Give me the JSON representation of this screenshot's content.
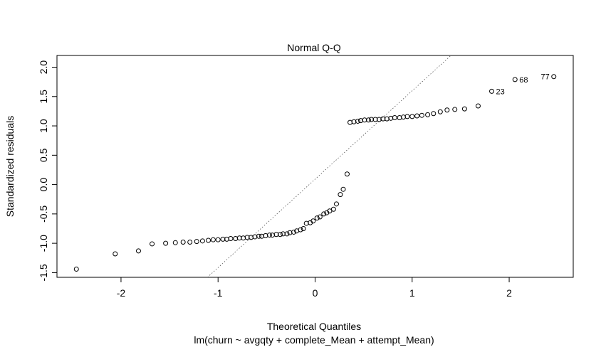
{
  "chart_data": {
    "type": "scatter",
    "title": "Normal Q-Q",
    "xlabel": "Theoretical Quantiles",
    "ylabel": "Standardized residuals",
    "subtitle": "lm(churn ~ avgqty + complete_Mean + attempt_Mean)",
    "xlim": [
      -2.5,
      2.5
    ],
    "ylim": [
      -1.5,
      2.0
    ],
    "xticks": [
      "-2",
      "-1",
      "0",
      "1",
      "2"
    ],
    "yticks": [
      "-1.5",
      "-1.0",
      "-0.5",
      "0.0",
      "0.5",
      "1.0",
      "1.5",
      "2.0"
    ],
    "grid": false,
    "reference_line": {
      "style": "dotted",
      "points": [
        [
          -1.11,
          -1.58
        ],
        [
          1.4,
          2.2
        ]
      ]
    },
    "points": [
      {
        "x": -2.46,
        "y": -1.44
      },
      {
        "x": -2.06,
        "y": -1.18
      },
      {
        "x": -1.82,
        "y": -1.13
      },
      {
        "x": -1.68,
        "y": -1.01
      },
      {
        "x": -1.54,
        "y": -1.0
      },
      {
        "x": -1.44,
        "y": -0.99
      },
      {
        "x": -1.36,
        "y": -0.98
      },
      {
        "x": -1.29,
        "y": -0.98
      },
      {
        "x": -1.22,
        "y": -0.97
      },
      {
        "x": -1.16,
        "y": -0.96
      },
      {
        "x": -1.1,
        "y": -0.95
      },
      {
        "x": -1.05,
        "y": -0.94
      },
      {
        "x": -1.0,
        "y": -0.94
      },
      {
        "x": -0.95,
        "y": -0.93
      },
      {
        "x": -0.91,
        "y": -0.93
      },
      {
        "x": -0.87,
        "y": -0.92
      },
      {
        "x": -0.82,
        "y": -0.92
      },
      {
        "x": -0.78,
        "y": -0.91
      },
      {
        "x": -0.74,
        "y": -0.91
      },
      {
        "x": -0.7,
        "y": -0.9
      },
      {
        "x": -0.66,
        "y": -0.9
      },
      {
        "x": -0.62,
        "y": -0.89
      },
      {
        "x": -0.58,
        "y": -0.88
      },
      {
        "x": -0.55,
        "y": -0.88
      },
      {
        "x": -0.51,
        "y": -0.87
      },
      {
        "x": -0.47,
        "y": -0.86
      },
      {
        "x": -0.44,
        "y": -0.86
      },
      {
        "x": -0.4,
        "y": -0.85
      },
      {
        "x": -0.36,
        "y": -0.85
      },
      {
        "x": -0.33,
        "y": -0.84
      },
      {
        "x": -0.29,
        "y": -0.84
      },
      {
        "x": -0.26,
        "y": -0.82
      },
      {
        "x": -0.22,
        "y": -0.81
      },
      {
        "x": -0.19,
        "y": -0.79
      },
      {
        "x": -0.15,
        "y": -0.77
      },
      {
        "x": -0.12,
        "y": -0.75
      },
      {
        "x": -0.09,
        "y": -0.66
      },
      {
        "x": -0.05,
        "y": -0.65
      },
      {
        "x": -0.02,
        "y": -0.62
      },
      {
        "x": 0.02,
        "y": -0.57
      },
      {
        "x": 0.05,
        "y": -0.55
      },
      {
        "x": 0.09,
        "y": -0.5
      },
      {
        "x": 0.12,
        "y": -0.48
      },
      {
        "x": 0.15,
        "y": -0.45
      },
      {
        "x": 0.19,
        "y": -0.42
      },
      {
        "x": 0.22,
        "y": -0.33
      },
      {
        "x": 0.26,
        "y": -0.17
      },
      {
        "x": 0.29,
        "y": -0.08
      },
      {
        "x": 0.33,
        "y": 0.18
      },
      {
        "x": 0.36,
        "y": 1.06
      },
      {
        "x": 0.4,
        "y": 1.07
      },
      {
        "x": 0.44,
        "y": 1.08
      },
      {
        "x": 0.47,
        "y": 1.09
      },
      {
        "x": 0.51,
        "y": 1.1
      },
      {
        "x": 0.55,
        "y": 1.1
      },
      {
        "x": 0.58,
        "y": 1.11
      },
      {
        "x": 0.62,
        "y": 1.11
      },
      {
        "x": 0.66,
        "y": 1.11
      },
      {
        "x": 0.7,
        "y": 1.12
      },
      {
        "x": 0.74,
        "y": 1.12
      },
      {
        "x": 0.78,
        "y": 1.13
      },
      {
        "x": 0.82,
        "y": 1.14
      },
      {
        "x": 0.87,
        "y": 1.14
      },
      {
        "x": 0.91,
        "y": 1.15
      },
      {
        "x": 0.95,
        "y": 1.16
      },
      {
        "x": 1.0,
        "y": 1.16
      },
      {
        "x": 1.05,
        "y": 1.17
      },
      {
        "x": 1.1,
        "y": 1.18
      },
      {
        "x": 1.16,
        "y": 1.19
      },
      {
        "x": 1.22,
        "y": 1.21
      },
      {
        "x": 1.29,
        "y": 1.24
      },
      {
        "x": 1.36,
        "y": 1.27
      },
      {
        "x": 1.44,
        "y": 1.28
      },
      {
        "x": 1.54,
        "y": 1.29
      },
      {
        "x": 1.68,
        "y": 1.34
      },
      {
        "x": 1.82,
        "y": 1.59
      },
      {
        "x": 2.06,
        "y": 1.79
      },
      {
        "x": 2.46,
        "y": 1.84
      }
    ],
    "labeled_points": [
      {
        "label": "23",
        "x": 1.82,
        "y": 1.59,
        "side": "right"
      },
      {
        "label": "68",
        "x": 2.06,
        "y": 1.79,
        "side": "right"
      },
      {
        "label": "77",
        "x": 2.46,
        "y": 1.84,
        "side": "left"
      }
    ]
  }
}
